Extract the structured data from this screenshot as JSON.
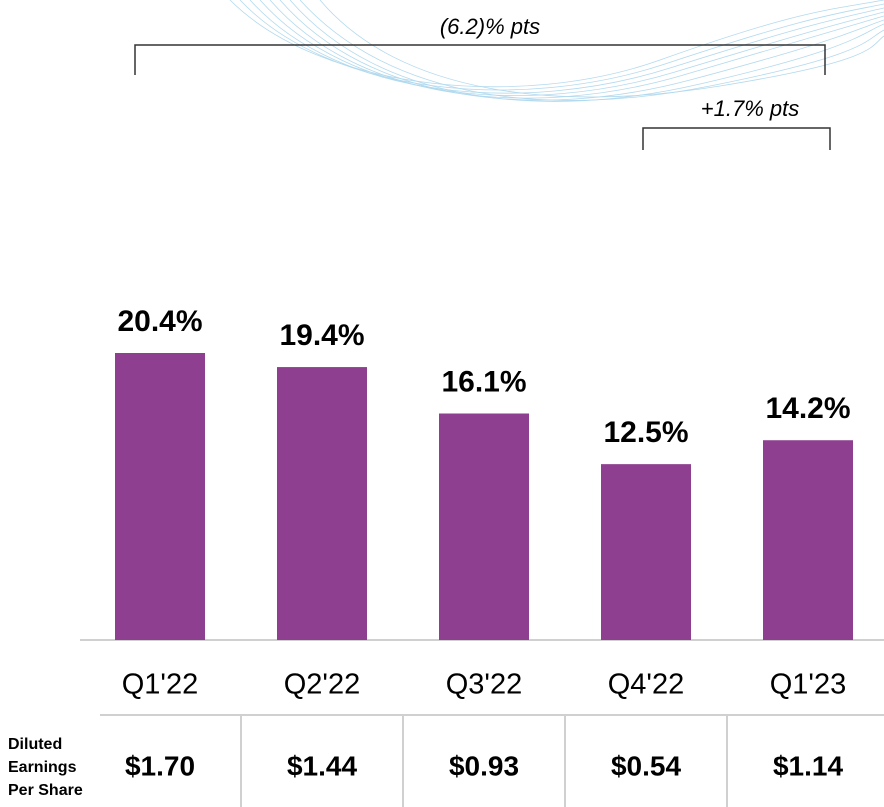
{
  "chart_data": {
    "type": "bar",
    "categories": [
      "Q1'22",
      "Q2'22",
      "Q3'22",
      "Q4'22",
      "Q1'23"
    ],
    "values": [
      20.4,
      19.4,
      16.1,
      12.5,
      14.2
    ],
    "value_labels": [
      "20.4%",
      "19.4%",
      "16.1%",
      "12.5%",
      "14.2%"
    ],
    "color": "#8e3f8f",
    "annotations": [
      "(6.2)% pts",
      "+1.7% pts"
    ]
  },
  "table": {
    "label": [
      "Diluted",
      "Earnings",
      "Per Share"
    ],
    "values": [
      "$1.70",
      "$1.44",
      "$0.93",
      "$0.54",
      "$1.14"
    ]
  }
}
